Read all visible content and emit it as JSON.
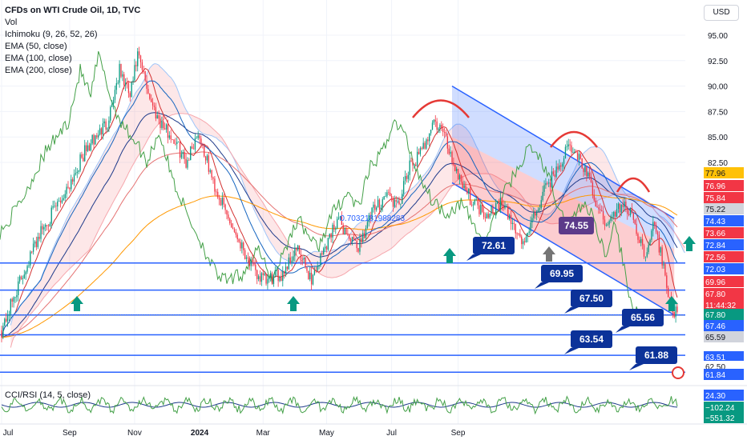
{
  "legend": {
    "title": "CFDs on WTI Crude Oil, 1D, TVC",
    "lines": [
      "Vol",
      "Ichimoku (9, 26, 52, 26)",
      "EMA (50, close)",
      "EMA (100, close)",
      "EMA (200, close)"
    ]
  },
  "currency_button": "USD",
  "rsi_title": "CCI/RSI (14, 5, close)",
  "colors": {
    "up": "#089981",
    "down": "#f23645",
    "line_blue": "#2962ff",
    "label_navy": "#0c3299",
    "channel_fill": "#2962ff",
    "fill_red": "#f23645",
    "arc": "#e53935",
    "arrow": "#089981"
  },
  "chart_data": [
    {
      "type": "candlestick",
      "title": "CFDs on WTI Crude Oil, 1D, TVC",
      "x_ticks": [
        "Jul",
        "Sep",
        "Nov",
        "2024",
        "Mar",
        "May",
        "Jul",
        "Sep"
      ],
      "y_ticks": [
        "95.00",
        "92.50",
        "90.00",
        "87.50",
        "85.00",
        "82.50"
      ],
      "ylim": [
        60.5,
        97.5
      ],
      "horizontal_levels": [
        72.61,
        69.95,
        67.5,
        65.56,
        63.54,
        61.88
      ],
      "level_labels": [
        "72.61",
        "69.95",
        "67.50",
        "65.56",
        "63.54",
        "61.88"
      ],
      "fib_label": "0.7032181988283",
      "highlight_label": "74.55",
      "right_scale_labels": [
        {
          "text": "77.96",
          "bg": "#ffc107",
          "fg": "#131722"
        },
        {
          "text": "76.96",
          "bg": "#f23645",
          "fg": "#ffffff"
        },
        {
          "text": "75.84",
          "bg": "#f23645",
          "fg": "#ffffff"
        },
        {
          "text": "75.22",
          "bg": "#d1d4dc",
          "fg": "#131722"
        },
        {
          "text": "74.43",
          "bg": "#2962ff",
          "fg": "#ffffff"
        },
        {
          "text": "73.66",
          "bg": "#f23645",
          "fg": "#ffffff"
        },
        {
          "text": "72.84",
          "bg": "#2962ff",
          "fg": "#ffffff"
        },
        {
          "text": "72.56",
          "bg": "#f23645",
          "fg": "#ffffff"
        },
        {
          "text": "72.03",
          "bg": "#2962ff",
          "fg": "#ffffff"
        },
        {
          "text": "69.96",
          "bg": "#f23645",
          "fg": "#ffffff"
        },
        {
          "text": "67.80",
          "bg": "#f23645",
          "fg": "#ffffff"
        },
        {
          "text": "11:44:32",
          "bg": "#f23645",
          "fg": "#ffffff"
        },
        {
          "text": "67.80",
          "bg": "#089981",
          "fg": "#ffffff"
        },
        {
          "text": "67.46",
          "bg": "#2962ff",
          "fg": "#ffffff"
        },
        {
          "text": "65.59",
          "bg": "#d1d4dc",
          "fg": "#131722"
        },
        {
          "text": "63.51",
          "bg": "#2962ff",
          "fg": "#ffffff"
        },
        {
          "text": "62.50",
          "bg": "#ffffff",
          "fg": "#131722"
        },
        {
          "text": "61.84",
          "bg": "#2962ff",
          "fg": "#ffffff"
        },
        {
          "text": "24.30",
          "bg": "#2962ff",
          "fg": "#ffffff"
        },
        {
          "text": "−102.24",
          "bg": "#089981",
          "fg": "#ffffff"
        },
        {
          "text": "−551.32",
          "bg": "#089981",
          "fg": "#ffffff"
        }
      ],
      "anchors": [
        {
          "d": 0,
          "v": 66.0
        },
        {
          "d": 10,
          "v": 70.0
        },
        {
          "d": 25,
          "v": 75.5
        },
        {
          "d": 40,
          "v": 79.0
        },
        {
          "d": 55,
          "v": 83.5
        },
        {
          "d": 70,
          "v": 86.5
        },
        {
          "d": 78,
          "v": 91.5
        },
        {
          "d": 85,
          "v": 89.0
        },
        {
          "d": 90,
          "v": 93.0
        },
        {
          "d": 100,
          "v": 88.0
        },
        {
          "d": 107,
          "v": 86.0
        },
        {
          "d": 115,
          "v": 84.5
        },
        {
          "d": 122,
          "v": 82.5
        },
        {
          "d": 130,
          "v": 85.5
        },
        {
          "d": 140,
          "v": 80.5
        },
        {
          "d": 150,
          "v": 77.0
        },
        {
          "d": 160,
          "v": 74.0
        },
        {
          "d": 168,
          "v": 71.5
        },
        {
          "d": 175,
          "v": 70.8
        },
        {
          "d": 185,
          "v": 71.5
        },
        {
          "d": 195,
          "v": 74.0
        },
        {
          "d": 205,
          "v": 71.0
        },
        {
          "d": 212,
          "v": 73.5
        },
        {
          "d": 222,
          "v": 77.0
        },
        {
          "d": 235,
          "v": 74.0
        },
        {
          "d": 245,
          "v": 77.5
        },
        {
          "d": 255,
          "v": 79.5
        },
        {
          "d": 262,
          "v": 78.0
        },
        {
          "d": 270,
          "v": 82.0
        },
        {
          "d": 278,
          "v": 83.5
        },
        {
          "d": 285,
          "v": 86.5
        },
        {
          "d": 292,
          "v": 85.5
        },
        {
          "d": 300,
          "v": 82.0
        },
        {
          "d": 310,
          "v": 79.0
        },
        {
          "d": 320,
          "v": 77.5
        },
        {
          "d": 330,
          "v": 78.5
        },
        {
          "d": 338,
          "v": 76.5
        },
        {
          "d": 345,
          "v": 74.5
        },
        {
          "d": 352,
          "v": 77.0
        },
        {
          "d": 360,
          "v": 80.0
        },
        {
          "d": 368,
          "v": 82.0
        },
        {
          "d": 375,
          "v": 84.0
        },
        {
          "d": 382,
          "v": 83.0
        },
        {
          "d": 388,
          "v": 81.0
        },
        {
          "d": 395,
          "v": 77.5
        },
        {
          "d": 402,
          "v": 76.5
        },
        {
          "d": 410,
          "v": 78.5
        },
        {
          "d": 418,
          "v": 77.0
        },
        {
          "d": 425,
          "v": 73.5
        },
        {
          "d": 432,
          "v": 76.5
        },
        {
          "d": 438,
          "v": 72.0
        },
        {
          "d": 444,
          "v": 67.8
        }
      ],
      "rsi": {
        "label_values": [
          "24.30",
          "−102.24",
          "−551.32"
        ]
      }
    }
  ]
}
